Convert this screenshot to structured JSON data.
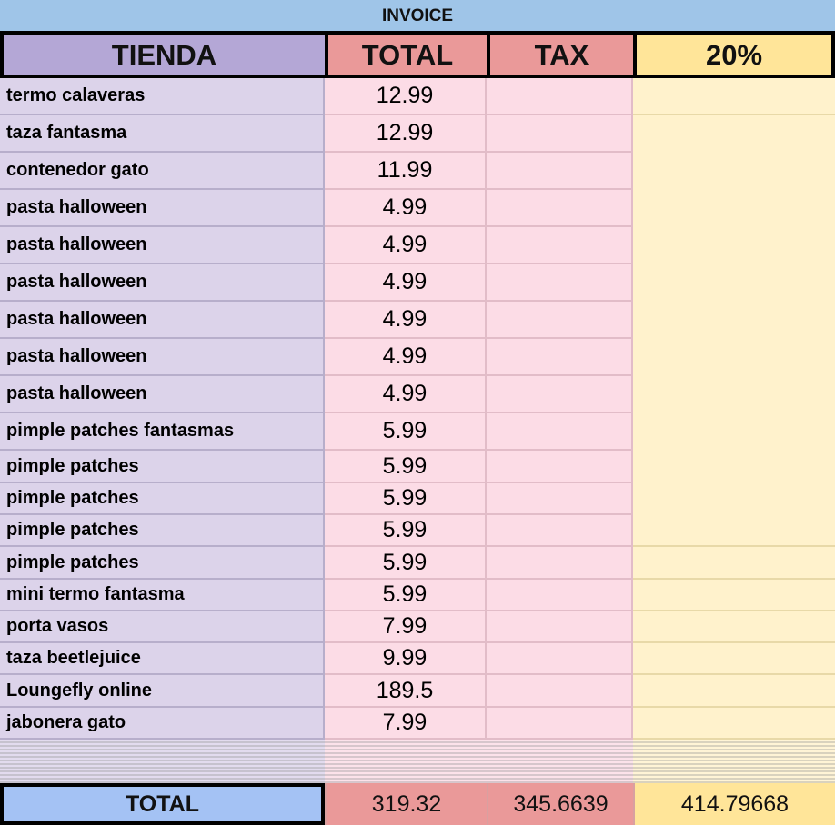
{
  "title": "INVOICE",
  "headers": [
    "TIENDA",
    "TOTAL",
    "TAX",
    "20%"
  ],
  "header_colors": [
    "#b4a7d6",
    "#ea9999",
    "#ea9999",
    "#ffe599"
  ],
  "rows": [
    {
      "tienda": "termo calaveras",
      "total": "12.99"
    },
    {
      "tienda": "taza fantasma",
      "total": "12.99"
    },
    {
      "tienda": "contenedor gato",
      "total": "11.99"
    },
    {
      "tienda": "pasta halloween",
      "total": "4.99"
    },
    {
      "tienda": "pasta halloween",
      "total": "4.99"
    },
    {
      "tienda": "pasta halloween",
      "total": "4.99"
    },
    {
      "tienda": "pasta halloween",
      "total": "4.99"
    },
    {
      "tienda": "pasta halloween",
      "total": "4.99"
    },
    {
      "tienda": "pasta halloween",
      "total": "4.99"
    },
    {
      "tienda": "pimple patches fantasmas",
      "total": "5.99"
    },
    {
      "tienda": "pimple patches",
      "total": "5.99"
    },
    {
      "tienda": "pimple patches",
      "total": "5.99"
    },
    {
      "tienda": "pimple patches",
      "total": "5.99"
    },
    {
      "tienda": "pimple patches",
      "total": "5.99"
    },
    {
      "tienda": "mini termo fantasma",
      "total": "5.99"
    },
    {
      "tienda": "porta vasos",
      "total": "7.99"
    },
    {
      "tienda": "taza beetlejuice",
      "total": "9.99"
    },
    {
      "tienda": "Loungefly online",
      "total": "189.5"
    },
    {
      "tienda": "jabonera gato",
      "total": "7.99"
    }
  ],
  "totals": {
    "label": "TOTAL",
    "total": "319.32",
    "tax": "345.6639",
    "pct": "414.79668"
  },
  "total_colors": [
    "#a4c2f4",
    "#ea9999",
    "#ea9999",
    "#ffe599"
  ]
}
